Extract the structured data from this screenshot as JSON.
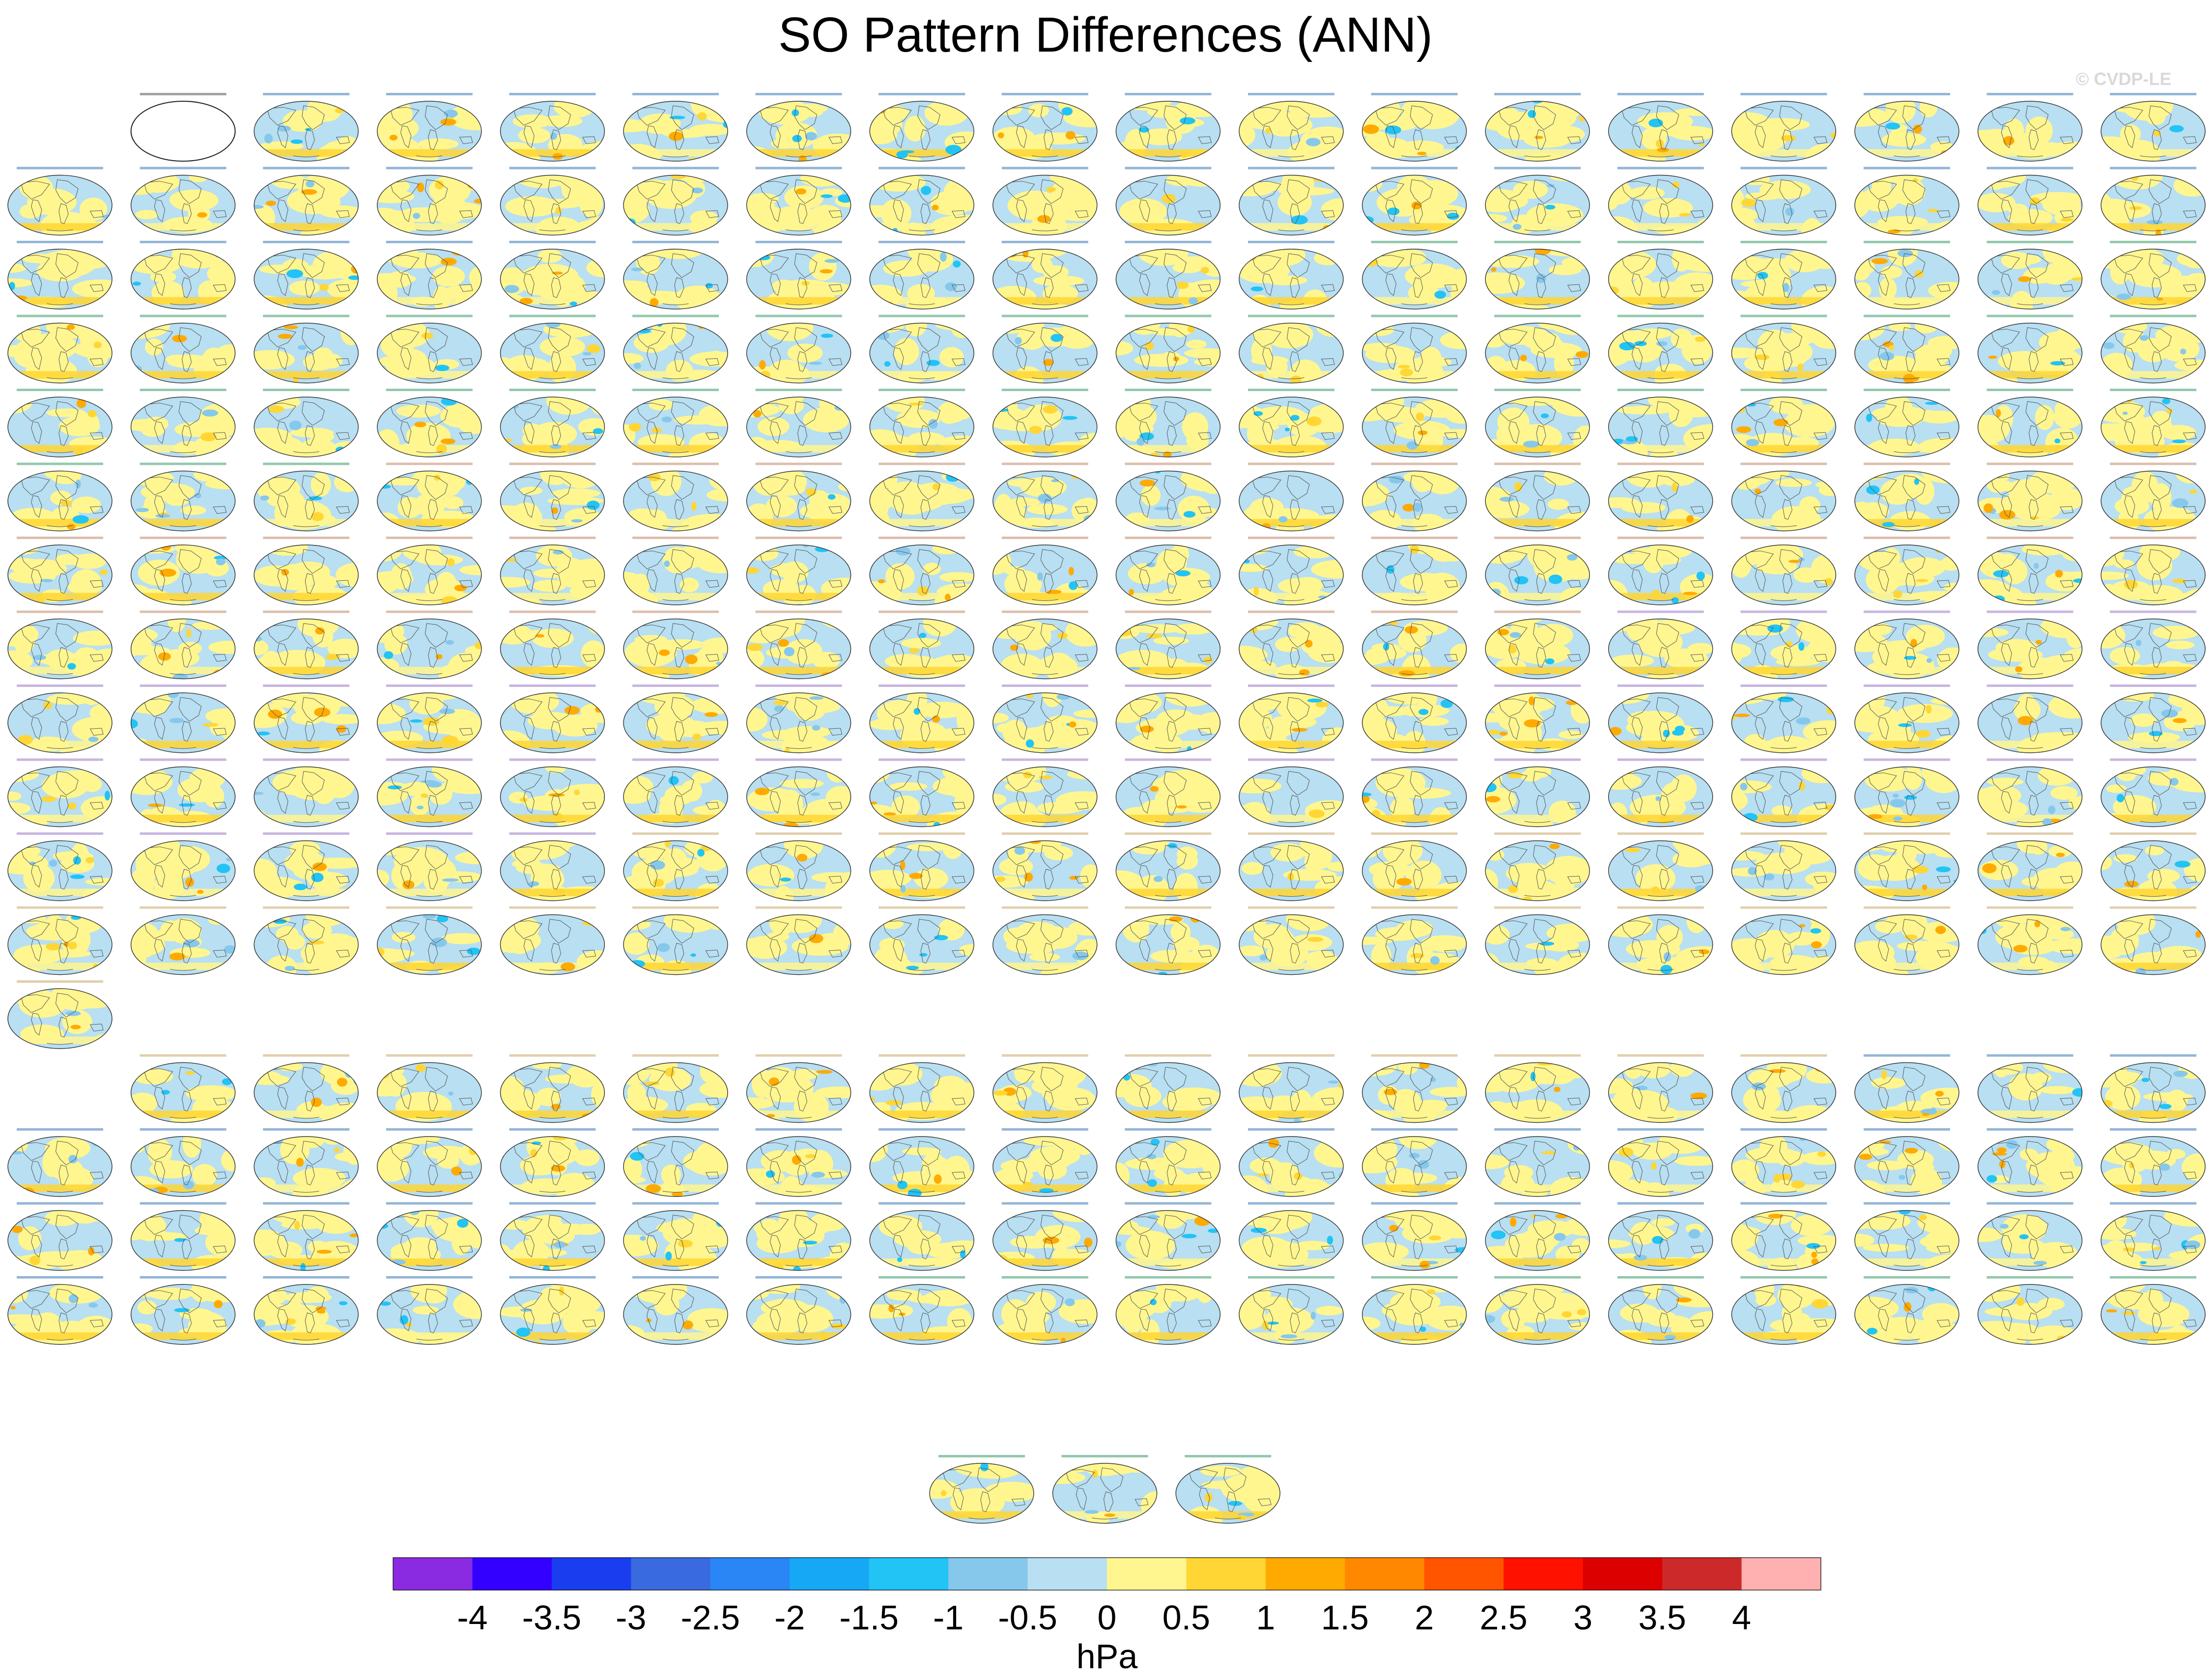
{
  "page": {
    "title": "SO Pattern Differences (ANN)",
    "watermark": "© CVDP-LE"
  },
  "panels": {
    "rows_full": 17,
    "columns": 18,
    "blank_slots": [
      [
        12,
        1
      ],
      [
        12,
        2
      ],
      [
        12,
        3
      ],
      [
        12,
        4
      ],
      [
        12,
        5
      ],
      [
        12,
        6
      ],
      [
        12,
        7
      ],
      [
        12,
        8
      ],
      [
        12,
        9
      ],
      [
        12,
        10
      ],
      [
        12,
        11
      ],
      [
        12,
        12
      ],
      [
        12,
        13
      ],
      [
        12,
        14
      ],
      [
        12,
        15
      ],
      [
        12,
        16
      ],
      [
        12,
        17
      ],
      [
        13,
        0
      ]
    ],
    "bottom_row_count": 3,
    "reference_panel": {
      "projection": "Robinson",
      "fill": "none"
    },
    "caption_colors": [
      "#3a7ab7",
      "#3a9a6a",
      "#c08a6a",
      "#9a7ac8",
      "#c8a86a"
    ],
    "land_overlay": "coastlines"
  },
  "chart_data": {
    "type": "heatmap",
    "title": "SO Pattern Differences (ANN)",
    "description_units": "hPa",
    "colorbar": {
      "label": "hPa",
      "ticks": [
        "-4",
        "-3.5",
        "-3",
        "-2.5",
        "-2",
        "-1.5",
        "-1",
        "-0.5",
        "0",
        "0.5",
        "1",
        "1.5",
        "2",
        "2.5",
        "3",
        "3.5",
        "4"
      ],
      "levels": [
        -4,
        -3.5,
        -3,
        -2.5,
        -2,
        -1.5,
        -1,
        -0.5,
        0,
        0.5,
        1,
        1.5,
        2,
        2.5,
        3,
        3.5,
        4
      ],
      "colors": [
        "#8a2be2",
        "#3300ff",
        "#1a3df0",
        "#3a6ae0",
        "#2a85f5",
        "#16a8f5",
        "#22c3f5",
        "#86c8ec",
        "#b8dff2",
        "#fff68f",
        "#ffd633",
        "#ffaa00",
        "#ff8800",
        "#ff5500",
        "#ff1100",
        "#dd0000",
        "#cc2a2a",
        "#ffb0b0"
      ]
    },
    "range": [
      -4,
      4
    ],
    "grid": false
  }
}
